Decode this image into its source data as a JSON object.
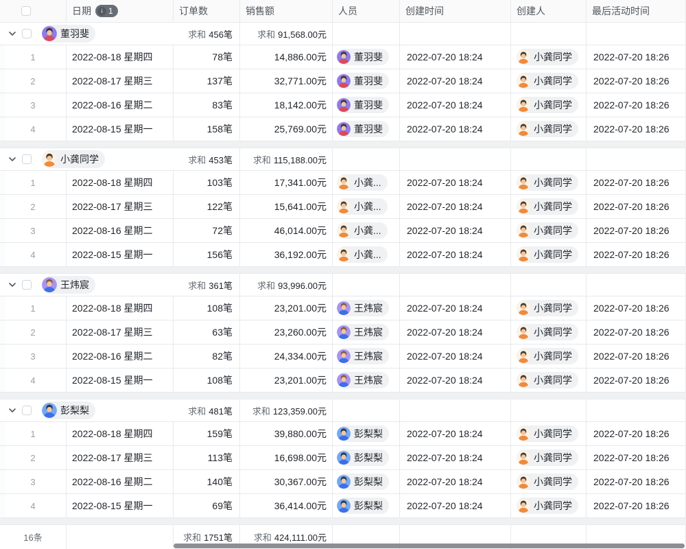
{
  "header": {
    "columns": [
      {
        "label": "日期"
      },
      {
        "label": "订单数"
      },
      {
        "label": "销售额"
      },
      {
        "label": "人员"
      },
      {
        "label": "创建时间"
      },
      {
        "label": "创建人"
      },
      {
        "label": "最后活动时间"
      }
    ],
    "sort_badge": {
      "icon": "↓",
      "value": "1"
    }
  },
  "people": {
    "董羽斐": {
      "bg": "#8F7BE8",
      "hair": "#3B3040",
      "skin": "#F2C6A0",
      "clothes": "#D84B5F"
    },
    "小龚同学": {
      "bg": "#FBF3E6",
      "hair": "#49392E",
      "skin": "#F2C6A0",
      "clothes": "#F08A3C"
    },
    "王炜宸": {
      "bg": "#A895EF",
      "hair": "#8A5A36",
      "skin": "#F2C6A0",
      "clothes": "#3D6FE8"
    },
    "彭梨梨": {
      "bg": "#74A9F2",
      "hair": "#322F3D",
      "skin": "#F2C6A0",
      "clothes": "#3D6FE8"
    }
  },
  "groups": [
    {
      "name": "董羽斐",
      "sum_orders": {
        "label": "求和",
        "value": "456笔"
      },
      "sum_sales": {
        "label": "求和",
        "value": "91,568.00元"
      },
      "rows": [
        {
          "index": "1",
          "date": "2022-08-18 星期四",
          "orders": "78笔",
          "sales": "14,886.00元",
          "person": "董羽斐",
          "person_key": "董羽斐",
          "created": "2022-07-20 18:24",
          "creator": "小龚同学",
          "creator_key": "小龚同学",
          "last_active": "2022-07-20 18:26"
        },
        {
          "index": "2",
          "date": "2022-08-17 星期三",
          "orders": "137笔",
          "sales": "32,771.00元",
          "person": "董羽斐",
          "person_key": "董羽斐",
          "created": "2022-07-20 18:24",
          "creator": "小龚同学",
          "creator_key": "小龚同学",
          "last_active": "2022-07-20 18:26"
        },
        {
          "index": "3",
          "date": "2022-08-16 星期二",
          "orders": "83笔",
          "sales": "18,142.00元",
          "person": "董羽斐",
          "person_key": "董羽斐",
          "created": "2022-07-20 18:24",
          "creator": "小龚同学",
          "creator_key": "小龚同学",
          "last_active": "2022-07-20 18:26"
        },
        {
          "index": "4",
          "date": "2022-08-15 星期一",
          "orders": "158笔",
          "sales": "25,769.00元",
          "person": "董羽斐",
          "person_key": "董羽斐",
          "created": "2022-07-20 18:24",
          "creator": "小龚同学",
          "creator_key": "小龚同学",
          "last_active": "2022-07-20 18:26"
        }
      ]
    },
    {
      "name": "小龚同学",
      "sum_orders": {
        "label": "求和",
        "value": "453笔"
      },
      "sum_sales": {
        "label": "求和",
        "value": "115,188.00元"
      },
      "rows": [
        {
          "index": "1",
          "date": "2022-08-18 星期四",
          "orders": "103笔",
          "sales": "17,341.00元",
          "person": "小龚...",
          "person_key": "小龚同学",
          "created": "2022-07-20 18:24",
          "creator": "小龚同学",
          "creator_key": "小龚同学",
          "last_active": "2022-07-20 18:26"
        },
        {
          "index": "2",
          "date": "2022-08-17 星期三",
          "orders": "122笔",
          "sales": "15,641.00元",
          "person": "小龚...",
          "person_key": "小龚同学",
          "created": "2022-07-20 18:24",
          "creator": "小龚同学",
          "creator_key": "小龚同学",
          "last_active": "2022-07-20 18:26"
        },
        {
          "index": "3",
          "date": "2022-08-16 星期二",
          "orders": "72笔",
          "sales": "46,014.00元",
          "person": "小龚...",
          "person_key": "小龚同学",
          "created": "2022-07-20 18:24",
          "creator": "小龚同学",
          "creator_key": "小龚同学",
          "last_active": "2022-07-20 18:26"
        },
        {
          "index": "4",
          "date": "2022-08-15 星期一",
          "orders": "156笔",
          "sales": "36,192.00元",
          "person": "小龚...",
          "person_key": "小龚同学",
          "created": "2022-07-20 18:24",
          "creator": "小龚同学",
          "creator_key": "小龚同学",
          "last_active": "2022-07-20 18:26"
        }
      ]
    },
    {
      "name": "王炜宸",
      "sum_orders": {
        "label": "求和",
        "value": "361笔"
      },
      "sum_sales": {
        "label": "求和",
        "value": "93,996.00元"
      },
      "rows": [
        {
          "index": "1",
          "date": "2022-08-18 星期四",
          "orders": "108笔",
          "sales": "23,201.00元",
          "person": "王炜宸",
          "person_key": "王炜宸",
          "created": "2022-07-20 18:24",
          "creator": "小龚同学",
          "creator_key": "小龚同学",
          "last_active": "2022-07-20 18:26"
        },
        {
          "index": "2",
          "date": "2022-08-17 星期三",
          "orders": "63笔",
          "sales": "23,260.00元",
          "person": "王炜宸",
          "person_key": "王炜宸",
          "created": "2022-07-20 18:24",
          "creator": "小龚同学",
          "creator_key": "小龚同学",
          "last_active": "2022-07-20 18:26"
        },
        {
          "index": "3",
          "date": "2022-08-16 星期二",
          "orders": "82笔",
          "sales": "24,334.00元",
          "person": "王炜宸",
          "person_key": "王炜宸",
          "created": "2022-07-20 18:24",
          "creator": "小龚同学",
          "creator_key": "小龚同学",
          "last_active": "2022-07-20 18:26"
        },
        {
          "index": "4",
          "date": "2022-08-15 星期一",
          "orders": "108笔",
          "sales": "23,201.00元",
          "person": "王炜宸",
          "person_key": "王炜宸",
          "created": "2022-07-20 18:24",
          "creator": "小龚同学",
          "creator_key": "小龚同学",
          "last_active": "2022-07-20 18:26"
        }
      ]
    },
    {
      "name": "彭梨梨",
      "sum_orders": {
        "label": "求和",
        "value": "481笔"
      },
      "sum_sales": {
        "label": "求和",
        "value": "123,359.00元"
      },
      "rows": [
        {
          "index": "1",
          "date": "2022-08-18 星期四",
          "orders": "159笔",
          "sales": "39,880.00元",
          "person": "彭梨梨",
          "person_key": "彭梨梨",
          "created": "2022-07-20 18:24",
          "creator": "小龚同学",
          "creator_key": "小龚同学",
          "last_active": "2022-07-20 18:26"
        },
        {
          "index": "2",
          "date": "2022-08-17 星期三",
          "orders": "113笔",
          "sales": "16,698.00元",
          "person": "彭梨梨",
          "person_key": "彭梨梨",
          "created": "2022-07-20 18:24",
          "creator": "小龚同学",
          "creator_key": "小龚同学",
          "last_active": "2022-07-20 18:26"
        },
        {
          "index": "3",
          "date": "2022-08-16 星期二",
          "orders": "140笔",
          "sales": "30,367.00元",
          "person": "彭梨梨",
          "person_key": "彭梨梨",
          "created": "2022-07-20 18:24",
          "creator": "小龚同学",
          "creator_key": "小龚同学",
          "last_active": "2022-07-20 18:26"
        },
        {
          "index": "4",
          "date": "2022-08-15 星期一",
          "orders": "69笔",
          "sales": "36,414.00元",
          "person": "彭梨梨",
          "person_key": "彭梨梨",
          "created": "2022-07-20 18:24",
          "creator": "小龚同学",
          "creator_key": "小龚同学",
          "last_active": "2022-07-20 18:26"
        }
      ]
    }
  ],
  "footer": {
    "count": "16条",
    "sum_orders": {
      "label": "求和",
      "value": "1751笔"
    },
    "sum_sales": {
      "label": "求和",
      "value": "424,111.00元"
    }
  }
}
